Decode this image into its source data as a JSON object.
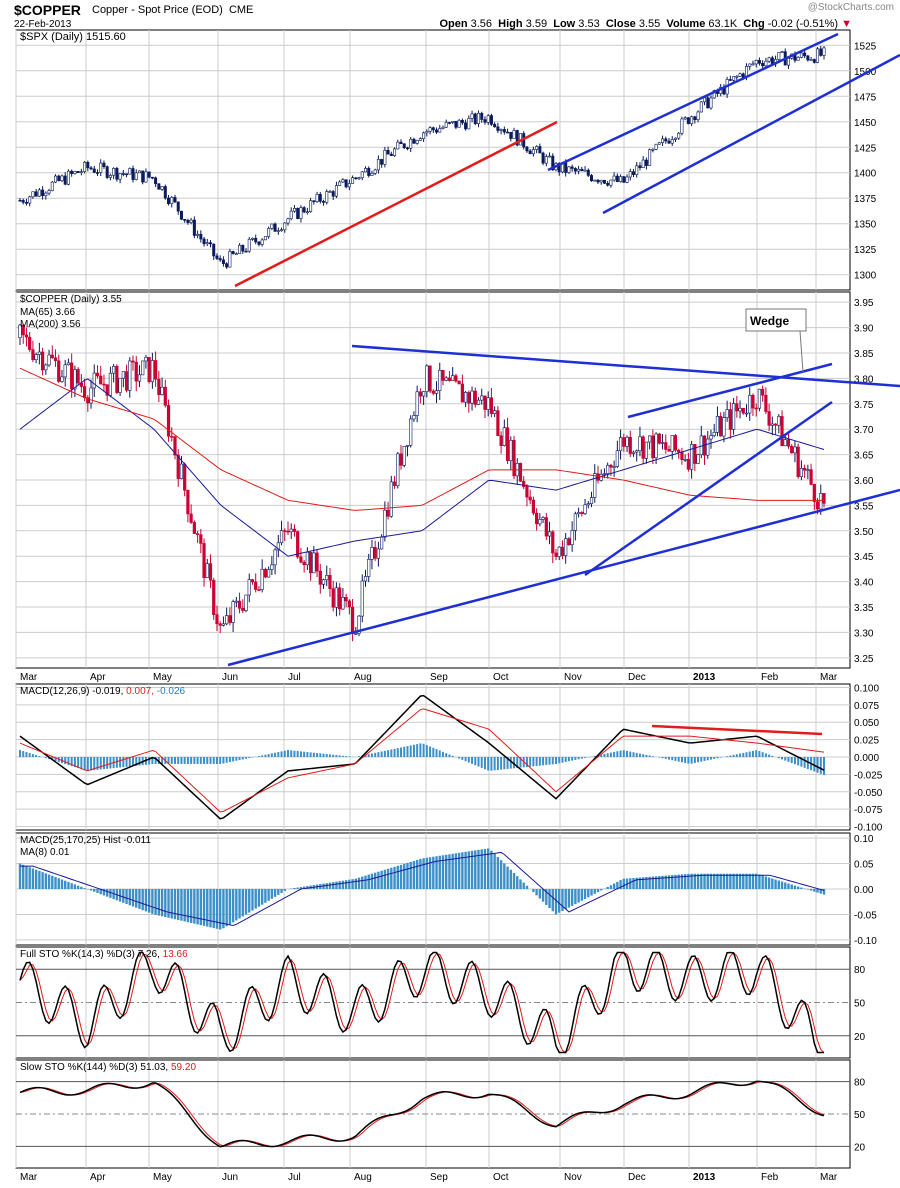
{
  "header": {
    "symbol": "$COPPER",
    "description": "Copper - Spot Price (EOD)",
    "exchange": "CME",
    "date": "22-Feb-2013",
    "brand": "@StockCharts.com",
    "open_label": "Open",
    "open": "3.56",
    "high_label": "High",
    "high": "3.59",
    "low_label": "Low",
    "low": "3.53",
    "close_label": "Close",
    "close": "3.55",
    "volume_label": "Volume",
    "volume": "63.1K",
    "chg_label": "Chg",
    "chg": "-0.02 (-0.51%)"
  },
  "months": [
    "Mar",
    "Apr",
    "May",
    "Jun",
    "Jul",
    "Aug",
    "Sep",
    "Oct",
    "Nov",
    "Dec",
    "2013",
    "Feb",
    "Mar"
  ],
  "panels": {
    "spx": {
      "legend": "$SPX (Daily) 1515.60",
      "ticks": [
        "1525",
        "1500",
        "1475",
        "1450",
        "1425",
        "1400",
        "1375",
        "1350",
        "1325",
        "1300"
      ]
    },
    "copper": {
      "legend": "$COPPER (Daily) 3.55",
      "ma65": "MA(65) 3.66",
      "ma200": "MA(200) 3.56",
      "ticks": [
        "3.95",
        "3.90",
        "3.85",
        "3.80",
        "3.75",
        "3.70",
        "3.65",
        "3.60",
        "3.55",
        "3.50",
        "3.45",
        "3.40",
        "3.35",
        "3.30",
        "3.25"
      ],
      "annotation": "Wedge"
    },
    "macd1": {
      "legend_prefix": "MACD(12,26,9)",
      "macd": "-0.019",
      "signal": "0.007",
      "hist": "-0.026",
      "ticks": [
        "0.100",
        "0.075",
        "0.050",
        "0.025",
        "0.000",
        "-0.025",
        "-0.050",
        "-0.075",
        "-0.100"
      ]
    },
    "macd2": {
      "legend": "MACD(25,170,25) Hist -0.011",
      "ma": "MA(8) 0.01",
      "ticks": [
        "0.10",
        "0.05",
        "0.00",
        "-0.05",
        "-0.10"
      ]
    },
    "fsto": {
      "legend_prefix": "Full STO %K(14,3) %D(3)",
      "k": "7.26",
      "d": "13.66",
      "ticks": [
        "80",
        "50",
        "20"
      ]
    },
    "ssto": {
      "legend_prefix": "Slow STO %K(144) %D(3)",
      "k": "51.03",
      "d": "59.20",
      "ticks": [
        "80",
        "50",
        "20"
      ]
    }
  },
  "colors": {
    "up": "#0a1a5c",
    "down": "#cc0033",
    "trend": "#1e2fd6",
    "red": "#e21b1b",
    "hist": "#3d8fc7",
    "grid": "#cccccc"
  },
  "chart_data": [
    {
      "type": "line",
      "title": "$SPX (Daily) 1515.60",
      "ylim": [
        1285,
        1540
      ],
      "x": [
        "Mar",
        "Apr",
        "May",
        "Jun",
        "Jul",
        "Aug",
        "Sep",
        "Oct",
        "Nov",
        "Dec",
        "2013",
        "Feb",
        "Feb-22"
      ],
      "series": [
        {
          "name": "$SPX",
          "values": [
            1373,
            1405,
            1395,
            1310,
            1355,
            1395,
            1440,
            1455,
            1405,
            1390,
            1455,
            1510,
            1515.6
          ]
        }
      ]
    },
    {
      "type": "line",
      "title": "$COPPER (Daily) 3.55",
      "ylim": [
        3.23,
        3.97
      ],
      "x": [
        "Mar",
        "Apr",
        "May",
        "Jun",
        "Jul",
        "Aug",
        "Sep",
        "Oct",
        "Nov",
        "Dec",
        "2013",
        "Feb",
        "Feb-22"
      ],
      "series": [
        {
          "name": "$COPPER",
          "values": [
            3.88,
            3.78,
            3.82,
            3.3,
            3.5,
            3.32,
            3.8,
            3.75,
            3.45,
            3.68,
            3.65,
            3.77,
            3.55
          ]
        },
        {
          "name": "MA(65)",
          "values": [
            3.7,
            3.8,
            3.7,
            3.55,
            3.45,
            3.48,
            3.5,
            3.6,
            3.58,
            3.62,
            3.66,
            3.7,
            3.66
          ]
        },
        {
          "name": "MA(200)",
          "values": [
            3.82,
            3.76,
            3.72,
            3.62,
            3.56,
            3.54,
            3.55,
            3.62,
            3.62,
            3.6,
            3.57,
            3.56,
            3.56
          ]
        }
      ]
    },
    {
      "type": "line",
      "title": "MACD(12,26,9)",
      "ylim": [
        -0.1,
        0.1
      ],
      "x": [
        "Mar",
        "Apr",
        "May",
        "Jun",
        "Jul",
        "Aug",
        "Sep",
        "Oct",
        "Nov",
        "Dec",
        "2013",
        "Feb",
        "Feb-22"
      ],
      "series": [
        {
          "name": "MACD",
          "values": [
            0.03,
            -0.04,
            0.0,
            -0.09,
            -0.02,
            -0.01,
            0.09,
            0.02,
            -0.06,
            0.04,
            0.02,
            0.03,
            -0.019
          ]
        },
        {
          "name": "Signal",
          "values": [
            0.02,
            -0.02,
            0.01,
            -0.08,
            -0.03,
            -0.01,
            0.07,
            0.04,
            -0.05,
            0.03,
            0.03,
            0.02,
            0.007
          ]
        },
        {
          "name": "Hist",
          "values": [
            0.01,
            -0.02,
            0.02,
            -0.01,
            0.01,
            0.0,
            0.02,
            -0.02,
            0.0,
            0.01,
            -0.01,
            0.01,
            -0.026
          ]
        }
      ]
    },
    {
      "type": "bar",
      "title": "MACD(25,170,25) Hist -0.011",
      "ylim": [
        -0.1,
        0.1
      ],
      "x": [
        "Mar",
        "Apr",
        "May",
        "Jun",
        "Jul",
        "Aug",
        "Sep",
        "Oct",
        "Nov",
        "Dec",
        "2013",
        "Feb",
        "Feb-22"
      ],
      "series": [
        {
          "name": "Hist",
          "values": [
            0.05,
            0.0,
            -0.05,
            -0.08,
            0.0,
            0.02,
            0.06,
            0.08,
            -0.05,
            0.02,
            0.03,
            0.03,
            -0.011
          ]
        }
      ]
    },
    {
      "type": "line",
      "title": "Full STO %K(14,3) %D(3)",
      "ylim": [
        0,
        100
      ],
      "x": [
        "Mar",
        "Apr",
        "May",
        "Jun",
        "Jul",
        "Aug",
        "Sep",
        "Oct",
        "Nov",
        "Dec",
        "2013",
        "Feb",
        "Feb-22"
      ],
      "series": [
        {
          "name": "%K",
          "values": [
            70,
            30,
            85,
            20,
            70,
            40,
            80,
            60,
            15,
            85,
            70,
            80,
            7.26
          ]
        },
        {
          "name": "%D",
          "values": [
            68,
            35,
            80,
            25,
            65,
            45,
            78,
            62,
            18,
            80,
            72,
            78,
            13.66
          ]
        }
      ]
    },
    {
      "type": "line",
      "title": "Slow STO %K(144) %D(3)",
      "ylim": [
        0,
        100
      ],
      "x": [
        "Mar",
        "Apr",
        "May",
        "Jun",
        "Jul",
        "Aug",
        "Sep",
        "Oct",
        "Nov",
        "Dec",
        "2013",
        "Feb",
        "Feb-22"
      ],
      "series": [
        {
          "name": "%K",
          "values": [
            70,
            72,
            80,
            20,
            25,
            30,
            65,
            70,
            40,
            60,
            70,
            83,
            51.03
          ]
        },
        {
          "name": "%D",
          "values": [
            68,
            71,
            78,
            22,
            26,
            30,
            63,
            70,
            42,
            58,
            68,
            82,
            59.2
          ]
        }
      ]
    }
  ]
}
